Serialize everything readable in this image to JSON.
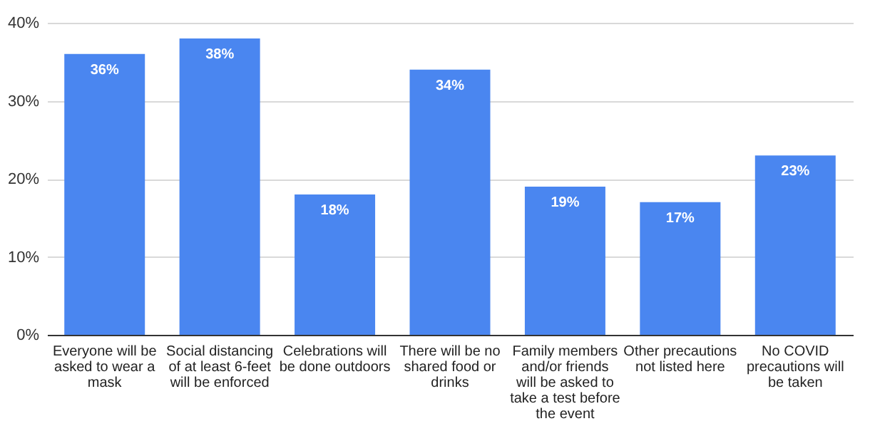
{
  "chart_data": {
    "type": "bar",
    "categories": [
      "Everyone will be asked to wear a mask",
      "Social distancing of at least 6-feet will be enforced",
      "Celebrations will be done outdoors",
      "There will be no shared food or drinks",
      "Family members and/or friends will be asked to take a test before the event",
      "Other precautions not listed here",
      "No COVID precautions will be taken"
    ],
    "values": [
      36,
      38,
      18,
      34,
      19,
      17,
      23
    ],
    "color": "#4a86f0",
    "ylim": [
      0,
      40
    ],
    "yticks": [
      {
        "value": 0,
        "label": "0%"
      },
      {
        "value": 10,
        "label": "10%"
      },
      {
        "value": 20,
        "label": "20%"
      },
      {
        "value": 30,
        "label": "30%"
      },
      {
        "value": 40,
        "label": "40%"
      }
    ],
    "value_labels": [
      "36%",
      "38%",
      "18%",
      "34%",
      "19%",
      "17%",
      "23%"
    ],
    "grid": "y"
  }
}
